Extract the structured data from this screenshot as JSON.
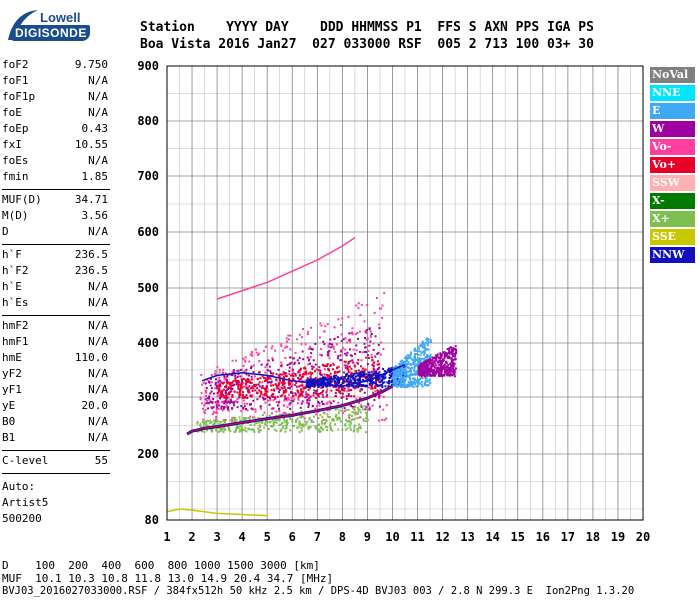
{
  "logo": {
    "brand_top": "Lowell",
    "brand_main": "DIGISONDE"
  },
  "header": {
    "row1": "Station    YYYY DAY    DDD HHMMSS P1  FFS S AXN PPS IGA PS",
    "row2": "Boa Vista 2016 Jan27  027 033000 RSF  005 2 713 100 03+ 30"
  },
  "params": {
    "group1": [
      {
        "name": "foF2",
        "value": "9.750"
      },
      {
        "name": "foF1",
        "value": "N/A"
      },
      {
        "name": "foF1p",
        "value": "N/A"
      },
      {
        "name": "foE",
        "value": "N/A"
      },
      {
        "name": "foEp",
        "value": "0.43"
      },
      {
        "name": "fxI",
        "value": "10.55"
      },
      {
        "name": "foEs",
        "value": "N/A"
      },
      {
        "name": "fmin",
        "value": "1.85"
      }
    ],
    "group2": [
      {
        "name": "MUF(D)",
        "value": "34.71"
      },
      {
        "name": "M(D)",
        "value": "3.56"
      },
      {
        "name": "D",
        "value": "N/A"
      }
    ],
    "group3": [
      {
        "name": "h`F",
        "value": "236.5"
      },
      {
        "name": "h`F2",
        "value": "236.5"
      },
      {
        "name": "h`E",
        "value": "N/A"
      },
      {
        "name": "h`Es",
        "value": "N/A"
      }
    ],
    "group4": [
      {
        "name": "hmF2",
        "value": "N/A"
      },
      {
        "name": "hmF1",
        "value": "N/A"
      },
      {
        "name": "hmE",
        "value": "110.0"
      },
      {
        "name": "yF2",
        "value": "N/A"
      },
      {
        "name": "yF1",
        "value": "N/A"
      },
      {
        "name": "yE",
        "value": "20.0"
      },
      {
        "name": "B0",
        "value": "N/A"
      },
      {
        "name": "B1",
        "value": "N/A"
      }
    ],
    "group5": [
      {
        "name": "C-level",
        "value": "55"
      }
    ],
    "auto": [
      "Auto:",
      "Artist5",
      "500200"
    ]
  },
  "legend": [
    {
      "label": "NoVal",
      "color": "#808080"
    },
    {
      "label": "NNE",
      "color": "#00e5ff"
    },
    {
      "label": "E",
      "color": "#3fa9f5"
    },
    {
      "label": "W",
      "color": "#a000a0"
    },
    {
      "label": "Vo-",
      "color": "#ff3fa0"
    },
    {
      "label": "Vo+",
      "color": "#e8002a"
    },
    {
      "label": "SSW",
      "color": "#ffb0b0"
    },
    {
      "label": "X-",
      "color": "#007a00"
    },
    {
      "label": "X+",
      "color": "#7fbf4f"
    },
    {
      "label": "SSE",
      "color": "#c8c800"
    },
    {
      "label": "NNW",
      "color": "#1010c0"
    }
  ],
  "footer": {
    "line1": "D    100  200  400  600  800 1000 1500 3000 [km]",
    "line2": "MUF  10.1 10.3 10.8 11.8 13.0 14.9 20.4 34.7 [MHz]",
    "line3": "BVJ03_2016027033000.RSF / 384fx512h 50 kHz 2.5 km / DPS-4D BVJ03 003 / 2.8 N 299.3 E  Ion2Png 1.3.20"
  },
  "chart_data": {
    "type": "scatter",
    "xlim": [
      1,
      20
    ],
    "ylim": [
      80,
      900
    ],
    "xticks": [
      1,
      2,
      3,
      4,
      5,
      6,
      7,
      8,
      9,
      10,
      11,
      12,
      13,
      14,
      15,
      16,
      17,
      18,
      19,
      20
    ],
    "yticks": [
      80,
      200,
      300,
      400,
      500,
      600,
      700,
      800,
      900
    ],
    "grid": true,
    "legend_position": "right",
    "trace_low": {
      "x": [
        1.8,
        2.0,
        2.5,
        3.0,
        4.0,
        5.0,
        6.0,
        7.0,
        8.0,
        9.0,
        9.6,
        10.0
      ],
      "y": [
        235,
        240,
        245,
        248,
        255,
        262,
        268,
        276,
        285,
        298,
        310,
        320
      ]
    },
    "trace_mid": {
      "x": [
        2.4,
        3.0,
        4.0,
        5.0,
        6.0,
        7.0,
        8.0,
        9.0,
        10.0,
        10.5
      ],
      "y": [
        330,
        340,
        345,
        340,
        330,
        325,
        320,
        330,
        350,
        360
      ]
    },
    "trace_high": {
      "x": [
        3.0,
        4.0,
        5.0,
        6.0,
        7.0,
        8.0,
        8.5
      ],
      "y": [
        480,
        495,
        510,
        530,
        550,
        575,
        590
      ]
    },
    "scatter_blocks": [
      {
        "x": [
          2.3,
          9.8
        ],
        "y": [
          260,
          500
        ],
        "color": "#ff3fa0"
      },
      {
        "x": [
          2.5,
          9.5
        ],
        "y": [
          280,
          440
        ],
        "color": "#a000a0"
      },
      {
        "x": [
          3.0,
          9.5
        ],
        "y": [
          300,
          380
        ],
        "color": "#e8002a"
      },
      {
        "x": [
          6.5,
          10.5
        ],
        "y": [
          320,
          360
        ],
        "color": "#1010c0"
      },
      {
        "x": [
          10.0,
          11.5
        ],
        "y": [
          320,
          420
        ],
        "color": "#3fa9f5"
      },
      {
        "x": [
          11.0,
          12.5
        ],
        "y": [
          340,
          400
        ],
        "color": "#a000a0"
      },
      {
        "x": [
          2.0,
          9.0
        ],
        "y": [
          240,
          290
        ],
        "color": "#7fbf4f"
      }
    ],
    "low_trace": {
      "x": [
        1.0,
        1.5,
        2.0,
        3.0,
        4.0,
        5.0
      ],
      "y": [
        95,
        100,
        98,
        92,
        90,
        88
      ]
    }
  }
}
